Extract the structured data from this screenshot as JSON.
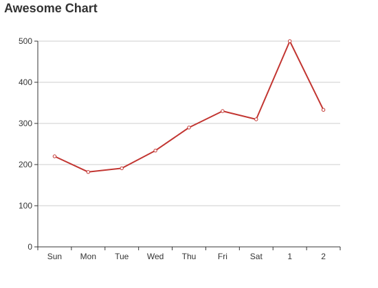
{
  "chart_data": {
    "type": "line",
    "title": "Awesome Chart",
    "xlabel": "",
    "ylabel": "",
    "categories": [
      "Sun",
      "Mon",
      "Tue",
      "Wed",
      "Thu",
      "Fri",
      "Sat",
      "1",
      "2"
    ],
    "series": [
      {
        "values": [
          220,
          182,
          191,
          234,
          290,
          330,
          310,
          500,
          333
        ]
      }
    ],
    "ylim": [
      0,
      500
    ],
    "yticks": [
      0,
      100,
      200,
      300,
      400,
      500
    ],
    "grid": true,
    "legend": "none"
  },
  "colors": {
    "line": "#c23531",
    "grid": "#cccccc",
    "axis": "#333333",
    "text": "#333333",
    "point_fill": "#ffffff"
  }
}
